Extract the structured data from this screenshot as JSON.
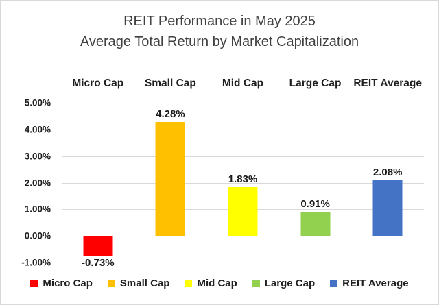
{
  "title": {
    "line1": "REIT Performance in May 2025",
    "line2": "Average Total Return by Market Capitalization"
  },
  "chart_data": {
    "type": "bar",
    "title": "REIT Performance in May 2025",
    "subtitle": "Average Total Return by Market Capitalization",
    "categories": [
      "Micro Cap",
      "Small Cap",
      "Mid Cap",
      "Large Cap",
      "REIT Average"
    ],
    "values": [
      -0.73,
      4.28,
      1.83,
      0.91,
      2.08
    ],
    "data_labels": [
      "-0.73%",
      "4.28%",
      "1.83%",
      "0.91%",
      "2.08%"
    ],
    "bar_colors": [
      "#FF0000",
      "#FFC000",
      "#FFFF00",
      "#92D050",
      "#4472C4"
    ],
    "xlabel": "",
    "ylabel": "",
    "ylim": [
      -1.0,
      5.0
    ],
    "y_tick_values": [
      5,
      4,
      3,
      2,
      1,
      0,
      -1
    ],
    "y_tick_labels": [
      "5.00%",
      "4.00%",
      "3.00%",
      "2.00%",
      "1.00%",
      "0.00%",
      "-1.00%"
    ],
    "grid": "horizontal",
    "grid_color": "#D9D9D9",
    "legend_position": "bottom",
    "legend": [
      {
        "label": "Micro Cap",
        "color": "#FF0000"
      },
      {
        "label": "Small Cap",
        "color": "#FFC000"
      },
      {
        "label": "Mid Cap",
        "color": "#FFFF00"
      },
      {
        "label": "Large Cap",
        "color": "#92D050"
      },
      {
        "label": "REIT Average",
        "color": "#4472C4"
      }
    ]
  },
  "colors": {
    "background": "#FFFFFF",
    "border": "#D9D9D9",
    "title_text": "#404040",
    "label_text": "#1F1F1F"
  }
}
